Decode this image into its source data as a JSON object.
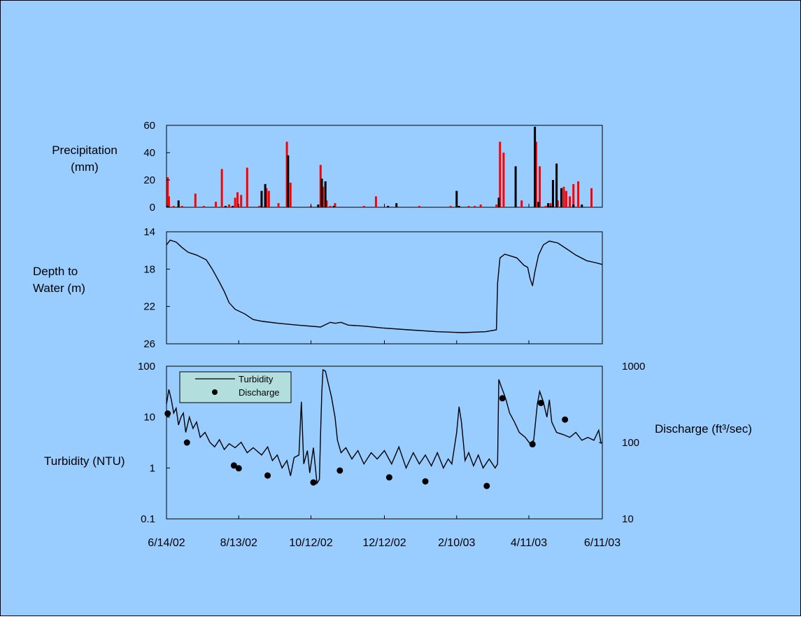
{
  "colors": {
    "background": "#99ccff",
    "line": "#000000",
    "precip_red": "#ff0000",
    "precip_black": "#000000",
    "legend_fill": "#b3dede"
  },
  "chart_data": [
    {
      "type": "bar",
      "ylabel": [
        "Precipitation",
        "(mm)"
      ],
      "ylim": [
        0,
        60
      ],
      "yticks": [
        0,
        20,
        40,
        60
      ],
      "xlim": [
        "2002-06-14",
        "2003-06-11"
      ],
      "grid": false,
      "series": [
        {
          "color": "#ff0000",
          "points": [
            [
              "2002-06-15",
              22
            ],
            [
              "2002-06-16",
              8
            ],
            [
              "2002-06-20",
              1
            ],
            [
              "2002-06-27",
              1
            ],
            [
              "2002-07-08",
              10
            ],
            [
              "2002-07-15",
              1
            ],
            [
              "2002-07-25",
              4
            ],
            [
              "2002-07-30",
              28
            ],
            [
              "2002-08-05",
              2
            ],
            [
              "2002-08-10",
              7
            ],
            [
              "2002-08-12",
              11
            ],
            [
              "2002-08-15",
              9
            ],
            [
              "2002-08-20",
              29
            ],
            [
              "2002-08-30",
              1
            ],
            [
              "2002-09-05",
              14
            ],
            [
              "2002-09-07",
              12
            ],
            [
              "2002-09-15",
              3
            ],
            [
              "2002-09-22",
              48
            ],
            [
              "2002-09-25",
              18
            ],
            [
              "2002-10-12",
              1
            ],
            [
              "2002-10-20",
              31
            ],
            [
              "2002-10-22",
              15
            ],
            [
              "2002-10-25",
              5
            ],
            [
              "2002-10-28",
              1
            ],
            [
              "2002-11-01",
              3
            ],
            [
              "2002-11-25",
              1
            ],
            [
              "2002-12-05",
              8
            ],
            [
              "2003-01-10",
              1
            ],
            [
              "2003-02-05",
              1
            ],
            [
              "2003-02-20",
              1
            ],
            [
              "2003-02-25",
              1
            ],
            [
              "2003-03-02",
              2
            ],
            [
              "2003-03-15",
              2
            ],
            [
              "2003-03-18",
              48
            ],
            [
              "2003-03-21",
              40
            ],
            [
              "2003-04-05",
              5
            ],
            [
              "2003-04-17",
              48
            ],
            [
              "2003-04-20",
              30
            ],
            [
              "2003-04-25",
              1
            ],
            [
              "2003-04-29",
              3
            ],
            [
              "2003-05-01",
              6
            ],
            [
              "2003-05-05",
              5
            ],
            [
              "2003-05-10",
              15
            ],
            [
              "2003-05-12",
              12
            ],
            [
              "2003-05-15",
              8
            ],
            [
              "2003-05-18",
              17
            ],
            [
              "2003-05-22",
              19
            ],
            [
              "2003-06-02",
              14
            ]
          ]
        },
        {
          "color": "#000000",
          "points": [
            [
              "2002-06-15",
              1
            ],
            [
              "2002-06-24",
              5
            ],
            [
              "2002-08-02",
              1
            ],
            [
              "2002-08-08",
              1
            ],
            [
              "2002-09-01",
              12
            ],
            [
              "2002-09-04",
              17
            ],
            [
              "2002-09-23",
              38
            ],
            [
              "2002-10-18",
              2
            ],
            [
              "2002-10-21",
              21
            ],
            [
              "2002-10-24",
              19
            ],
            [
              "2002-10-31",
              1
            ],
            [
              "2002-12-15",
              1
            ],
            [
              "2002-12-22",
              3
            ],
            [
              "2003-02-10",
              12
            ],
            [
              "2003-02-12",
              1
            ],
            [
              "2003-03-17",
              7
            ],
            [
              "2003-03-31",
              30
            ],
            [
              "2003-04-16",
              59
            ],
            [
              "2003-04-19",
              4
            ],
            [
              "2003-04-27",
              3
            ],
            [
              "2003-04-29",
              1
            ],
            [
              "2003-05-01",
              20
            ],
            [
              "2003-05-04",
              32
            ],
            [
              "2003-05-08",
              14
            ],
            [
              "2003-05-18",
              2
            ],
            [
              "2003-05-25",
              2
            ]
          ]
        }
      ]
    },
    {
      "type": "line",
      "ylabel": [
        "Depth to",
        "Water (m)"
      ],
      "ylim": [
        26,
        14
      ],
      "yticks": [
        14,
        18,
        22,
        26
      ],
      "inverted": true,
      "xlim": [
        "2002-06-14",
        "2003-06-11"
      ],
      "grid": false,
      "series": [
        {
          "color": "#000000",
          "points": [
            [
              "2002-06-14",
              15.4
            ],
            [
              "2002-06-17",
              14.9
            ],
            [
              "2002-06-22",
              15.1
            ],
            [
              "2002-06-27",
              15.7
            ],
            [
              "2002-07-02",
              16.2
            ],
            [
              "2002-07-09",
              16.5
            ],
            [
              "2002-07-17",
              17.0
            ],
            [
              "2002-07-22",
              18.0
            ],
            [
              "2002-07-28",
              19.4
            ],
            [
              "2002-08-01",
              20.4
            ],
            [
              "2002-08-05",
              21.6
            ],
            [
              "2002-08-10",
              22.3
            ],
            [
              "2002-08-18",
              22.8
            ],
            [
              "2002-08-25",
              23.4
            ],
            [
              "2002-09-02",
              23.6
            ],
            [
              "2002-09-15",
              23.8
            ],
            [
              "2002-10-01",
              24.0
            ],
            [
              "2002-10-20",
              24.2
            ],
            [
              "2002-10-28",
              23.7
            ],
            [
              "2002-11-01",
              23.8
            ],
            [
              "2002-11-06",
              23.7
            ],
            [
              "2002-11-12",
              24.0
            ],
            [
              "2002-11-25",
              24.1
            ],
            [
              "2002-12-10",
              24.3
            ],
            [
              "2003-01-01",
              24.5
            ],
            [
              "2003-01-25",
              24.7
            ],
            [
              "2003-02-15",
              24.8
            ],
            [
              "2003-03-06",
              24.7
            ],
            [
              "2003-03-15",
              24.5
            ],
            [
              "2003-03-16",
              19.5
            ],
            [
              "2003-03-18",
              16.8
            ],
            [
              "2003-03-22",
              16.4
            ],
            [
              "2003-04-01",
              16.8
            ],
            [
              "2003-04-07",
              17.6
            ],
            [
              "2003-04-10",
              17.8
            ],
            [
              "2003-04-12",
              19.0
            ],
            [
              "2003-04-14",
              19.8
            ],
            [
              "2003-04-16",
              18.3
            ],
            [
              "2003-04-19",
              16.5
            ],
            [
              "2003-04-23",
              15.4
            ],
            [
              "2003-04-28",
              15.0
            ],
            [
              "2003-05-05",
              15.2
            ],
            [
              "2003-05-12",
              15.8
            ],
            [
              "2003-05-20",
              16.5
            ],
            [
              "2003-05-29",
              17.1
            ],
            [
              "2003-06-05",
              17.3
            ],
            [
              "2003-06-11",
              17.5
            ]
          ]
        }
      ]
    },
    {
      "type": "line",
      "ylabel": "Turbidity (NTU)",
      "y2label": "Discharge (ft³/sec)",
      "yscale": "log",
      "ylim": [
        0.1,
        100
      ],
      "yticks": [
        0.1,
        1,
        10,
        100
      ],
      "y2scale": "log",
      "y2lim": [
        10,
        1000
      ],
      "y2ticks": [
        10,
        100,
        1000
      ],
      "xlim": [
        "2002-06-14",
        "2003-06-11"
      ],
      "xticks": [
        "6/14/02",
        "8/13/02",
        "10/12/02",
        "12/12/02",
        "2/10/03",
        "4/11/03",
        "6/11/03"
      ],
      "grid": false,
      "legend": {
        "position": "top-left",
        "entries": [
          "Turbidity",
          "Discharge"
        ]
      },
      "series": [
        {
          "name": "Turbidity",
          "color": "#000000",
          "points": [
            [
              "2002-06-14",
              18
            ],
            [
              "2002-06-16",
              35
            ],
            [
              "2002-06-18",
              22
            ],
            [
              "2002-06-20",
              12
            ],
            [
              "2002-06-22",
              15
            ],
            [
              "2002-06-24",
              7
            ],
            [
              "2002-06-26",
              10
            ],
            [
              "2002-06-28",
              12
            ],
            [
              "2002-06-30",
              5
            ],
            [
              "2002-07-03",
              10
            ],
            [
              "2002-07-06",
              6
            ],
            [
              "2002-07-09",
              8
            ],
            [
              "2002-07-12",
              4
            ],
            [
              "2002-07-16",
              5
            ],
            [
              "2002-07-20",
              3.2
            ],
            [
              "2002-07-24",
              2.6
            ],
            [
              "2002-07-28",
              3.6
            ],
            [
              "2002-08-01",
              2.3
            ],
            [
              "2002-08-05",
              3.0
            ],
            [
              "2002-08-10",
              2.5
            ],
            [
              "2002-08-15",
              3.2
            ],
            [
              "2002-08-20",
              2.0
            ],
            [
              "2002-08-25",
              2.5
            ],
            [
              "2002-09-01",
              1.8
            ],
            [
              "2002-09-06",
              2.6
            ],
            [
              "2002-09-10",
              1.4
            ],
            [
              "2002-09-14",
              1.8
            ],
            [
              "2002-09-18",
              1.0
            ],
            [
              "2002-09-22",
              1.4
            ],
            [
              "2002-09-25",
              0.7
            ],
            [
              "2002-09-28",
              1.6
            ],
            [
              "2002-10-02",
              1.8
            ],
            [
              "2002-10-04",
              20
            ],
            [
              "2002-10-06",
              1.2
            ],
            [
              "2002-10-09",
              2.2
            ],
            [
              "2002-10-11",
              0.8
            ],
            [
              "2002-10-14",
              2.5
            ],
            [
              "2002-10-17",
              0.5
            ],
            [
              "2002-10-19",
              0.6
            ],
            [
              "2002-10-20",
              5
            ],
            [
              "2002-10-21",
              30
            ],
            [
              "2002-10-22",
              85
            ],
            [
              "2002-10-24",
              80
            ],
            [
              "2002-10-26",
              50
            ],
            [
              "2002-10-29",
              25
            ],
            [
              "2002-11-01",
              10
            ],
            [
              "2002-11-03",
              3.5
            ],
            [
              "2002-11-06",
              2.0
            ],
            [
              "2002-11-10",
              2.5
            ],
            [
              "2002-11-15",
              1.5
            ],
            [
              "2002-11-20",
              2.2
            ],
            [
              "2002-11-25",
              1.2
            ],
            [
              "2002-12-01",
              2.0
            ],
            [
              "2002-12-06",
              1.5
            ],
            [
              "2002-12-12",
              2.2
            ],
            [
              "2002-12-18",
              1.2
            ],
            [
              "2002-12-24",
              2.6
            ],
            [
              "2002-12-30",
              1.0
            ],
            [
              "2003-01-05",
              2.0
            ],
            [
              "2003-01-10",
              1.2
            ],
            [
              "2003-01-15",
              1.8
            ],
            [
              "2003-01-20",
              1.1
            ],
            [
              "2003-01-25",
              2.0
            ],
            [
              "2003-01-30",
              1.0
            ],
            [
              "2003-02-03",
              1.5
            ],
            [
              "2003-02-06",
              1.2
            ],
            [
              "2003-02-10",
              5
            ],
            [
              "2003-02-12",
              16
            ],
            [
              "2003-02-14",
              8
            ],
            [
              "2003-02-17",
              1.4
            ],
            [
              "2003-02-20",
              2.0
            ],
            [
              "2003-02-24",
              1.1
            ],
            [
              "2003-02-28",
              1.8
            ],
            [
              "2003-03-04",
              1.0
            ],
            [
              "2003-03-09",
              1.5
            ],
            [
              "2003-03-14",
              1.0
            ],
            [
              "2003-03-16",
              1.2
            ],
            [
              "2003-03-17",
              55
            ],
            [
              "2003-03-19",
              40
            ],
            [
              "2003-03-21",
              30
            ],
            [
              "2003-03-23",
              22
            ],
            [
              "2003-03-26",
              12
            ],
            [
              "2003-03-30",
              8
            ],
            [
              "2003-04-03",
              5
            ],
            [
              "2003-04-08",
              4
            ],
            [
              "2003-04-12",
              3
            ],
            [
              "2003-04-15",
              3.5
            ],
            [
              "2003-04-18",
              18
            ],
            [
              "2003-04-20",
              32
            ],
            [
              "2003-04-23",
              20
            ],
            [
              "2003-04-26",
              10
            ],
            [
              "2003-04-28",
              22
            ],
            [
              "2003-04-30",
              8
            ],
            [
              "2003-05-04",
              5
            ],
            [
              "2003-05-10",
              4.5
            ],
            [
              "2003-05-15",
              4
            ],
            [
              "2003-05-20",
              5
            ],
            [
              "2003-05-25",
              3.5
            ],
            [
              "2003-05-30",
              4
            ],
            [
              "2003-06-04",
              3.5
            ],
            [
              "2003-06-08",
              5.5
            ],
            [
              "2003-06-10",
              3
            ]
          ]
        },
        {
          "name": "Discharge",
          "color": "#000000",
          "axis": "y2",
          "points": [
            [
              "2002-06-15",
              240
            ],
            [
              "2002-07-01",
              100
            ],
            [
              "2002-08-09",
              50
            ],
            [
              "2002-08-13",
              46
            ],
            [
              "2002-09-06",
              37
            ],
            [
              "2002-10-14",
              30
            ],
            [
              "2002-11-05",
              43
            ],
            [
              "2002-12-16",
              35
            ],
            [
              "2003-01-15",
              31
            ],
            [
              "2003-03-07",
              27
            ],
            [
              "2003-03-20",
              380
            ],
            [
              "2003-04-14",
              95
            ],
            [
              "2003-04-21",
              330
            ],
            [
              "2003-05-11",
              200
            ]
          ]
        }
      ]
    }
  ]
}
